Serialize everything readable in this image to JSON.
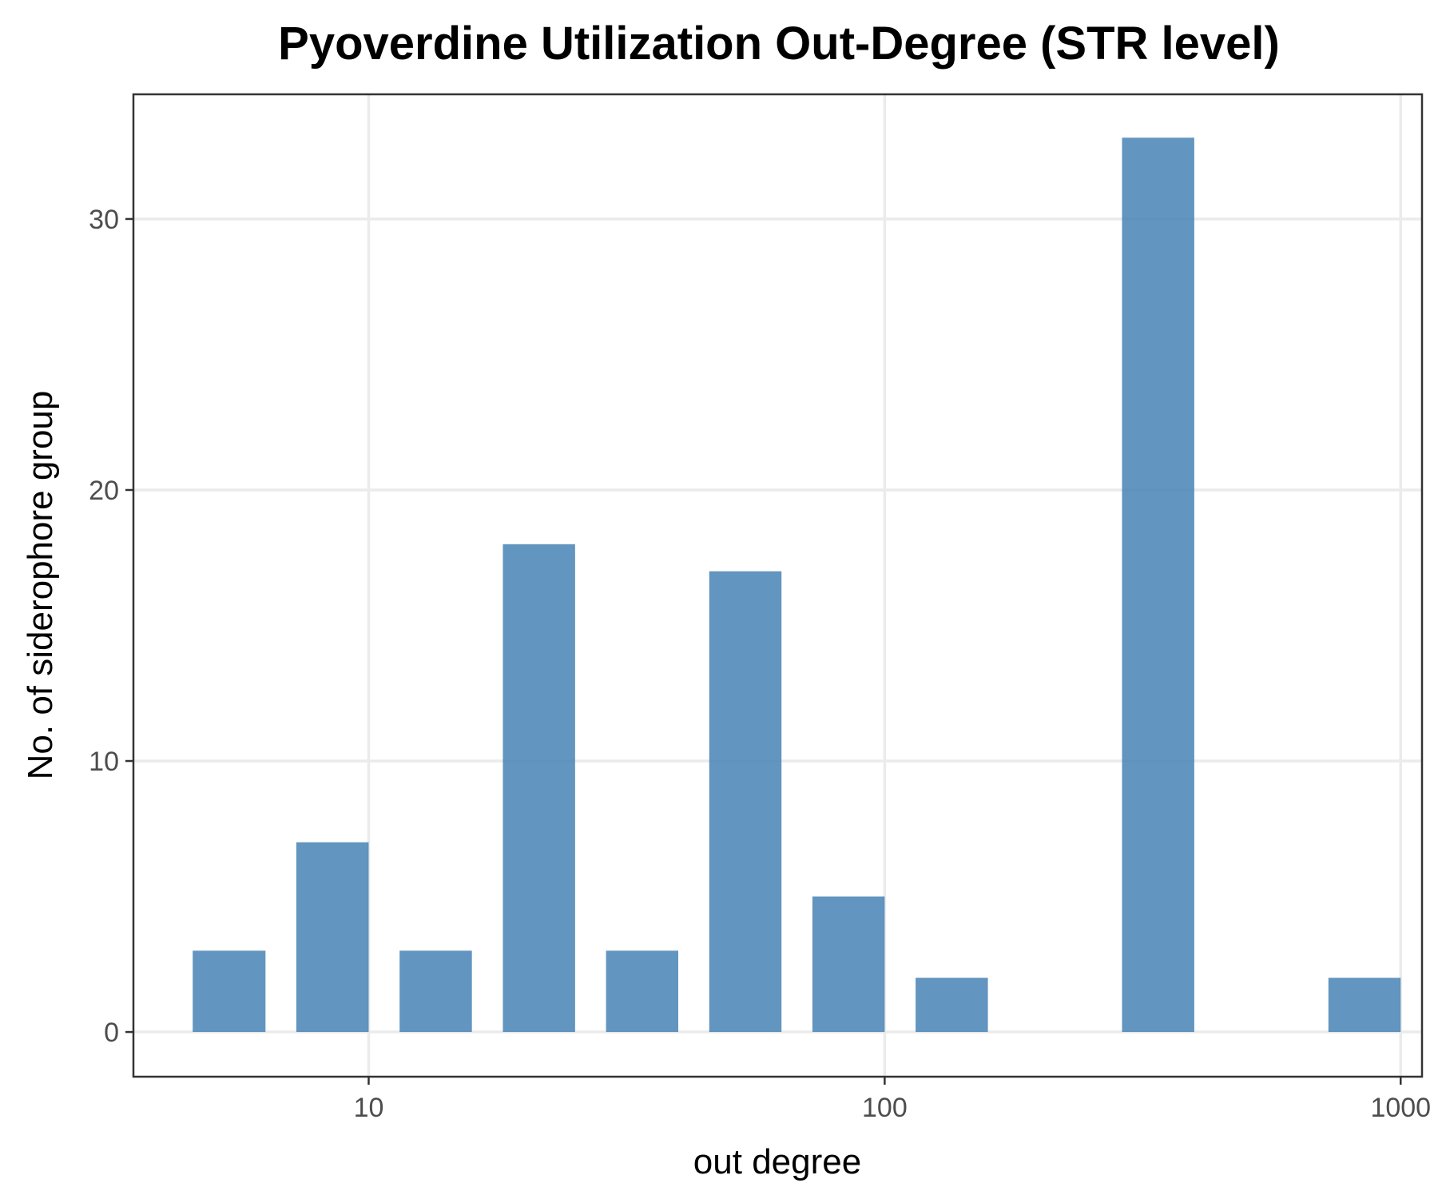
{
  "chart_data": {
    "type": "bar",
    "title": "Pyoverdine Utilization Out-Degree (STR level)",
    "xlabel": "out degree",
    "ylabel": "No. of siderophore group",
    "x_scale": "log10",
    "xlim": [
      3.5,
      1100
    ],
    "ylim": [
      -1.65,
      34.6
    ],
    "x_ticks": [
      {
        "value": 10,
        "label": "10"
      },
      {
        "value": 100,
        "label": "100"
      },
      {
        "value": 1000,
        "label": "1000"
      }
    ],
    "y_ticks": [
      {
        "value": 0,
        "label": "0"
      },
      {
        "value": 10,
        "label": "10"
      },
      {
        "value": 20,
        "label": "20"
      },
      {
        "value": 30,
        "label": "30"
      }
    ],
    "bins": [
      {
        "x0": 4.56,
        "x1": 6.31,
        "count": 3
      },
      {
        "x0": 7.24,
        "x1": 10.0,
        "count": 7
      },
      {
        "x0": 11.48,
        "x1": 15.85,
        "count": 3
      },
      {
        "x0": 18.2,
        "x1": 25.12,
        "count": 18
      },
      {
        "x0": 28.84,
        "x1": 39.81,
        "count": 3
      },
      {
        "x0": 45.71,
        "x1": 63.1,
        "count": 17
      },
      {
        "x0": 72.44,
        "x1": 100.0,
        "count": 5
      },
      {
        "x0": 114.8,
        "x1": 158.5,
        "count": 2
      },
      {
        "x0": 288.4,
        "x1": 398.1,
        "count": 33
      },
      {
        "x0": 724.4,
        "x1": 1000.0,
        "count": 2
      }
    ],
    "bar_color": "#4682b4",
    "grid": true,
    "legend": "none"
  }
}
